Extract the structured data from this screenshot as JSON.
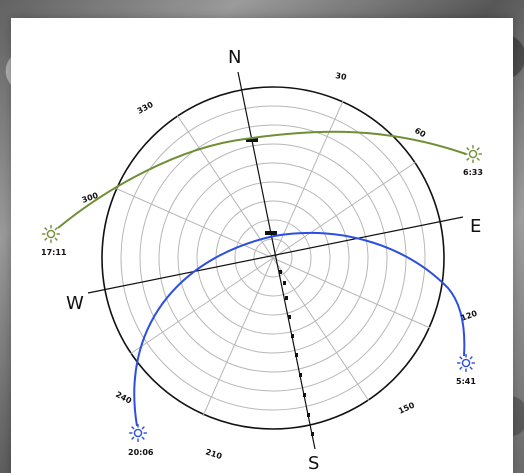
{
  "compass": {
    "north": "N",
    "east": "E",
    "south": "S",
    "west": "W"
  },
  "azimuth_labels": {
    "a30": "30",
    "a60": "60",
    "a120": "120",
    "a150": "150",
    "a210": "210",
    "a240": "240",
    "a300": "300",
    "a330": "330"
  },
  "sun_paths": {
    "green_start": "6:33",
    "green_end": "17:11",
    "blue_start": "5:41",
    "blue_end": "20:06"
  },
  "colors": {
    "green_path": "#6f8f34",
    "blue_path": "#2d4fe0",
    "grid": "#b5b5b5",
    "outline": "#111111"
  }
}
